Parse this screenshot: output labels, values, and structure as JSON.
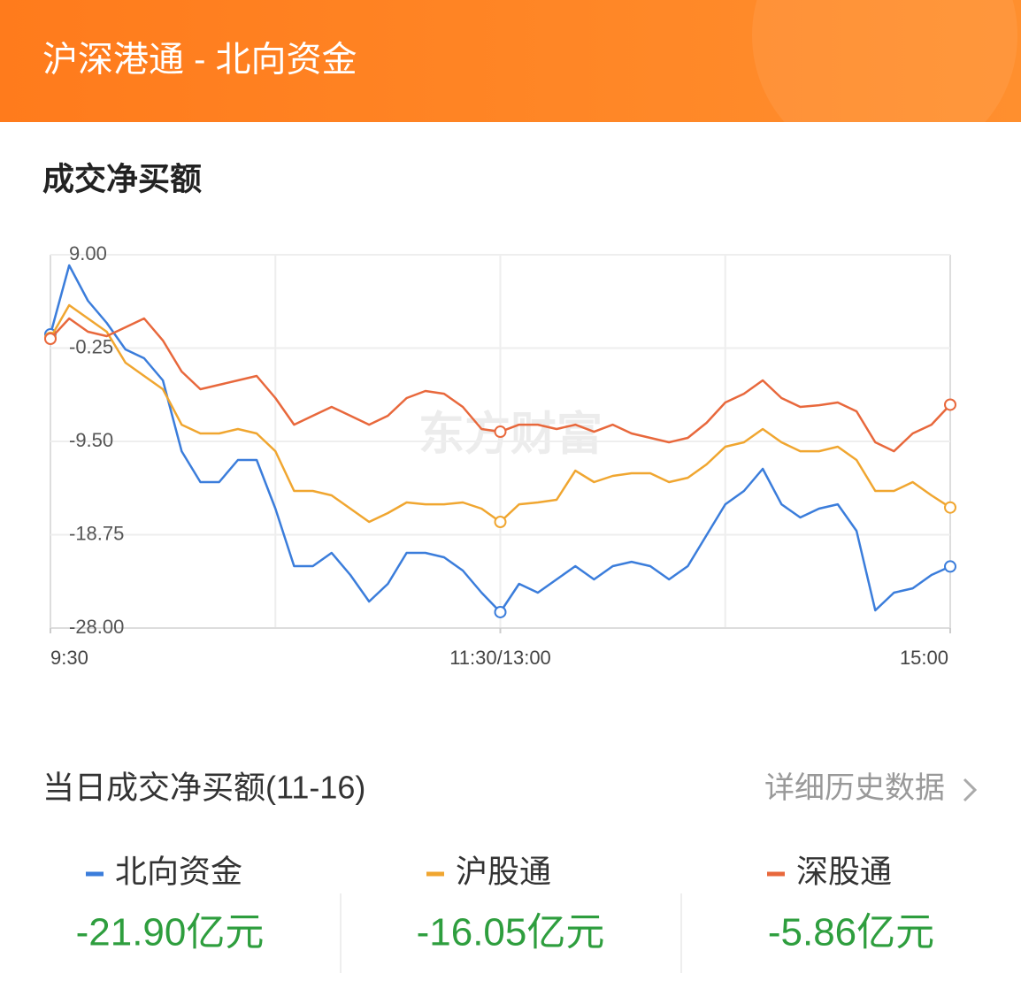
{
  "header": {
    "title": "沪深港通 - 北向资金"
  },
  "section": {
    "title": "成交净买额"
  },
  "watermark": "东方财富",
  "chart_data": {
    "type": "line",
    "categories": [
      "9:30",
      null,
      null,
      null,
      null,
      null,
      null,
      null,
      null,
      null,
      null,
      null,
      null,
      null,
      null,
      null,
      null,
      null,
      null,
      null,
      null,
      null,
      null,
      null,
      "11:30/13:00",
      null,
      null,
      null,
      null,
      null,
      null,
      null,
      null,
      null,
      null,
      null,
      null,
      null,
      null,
      null,
      null,
      null,
      null,
      null,
      null,
      null,
      null,
      null,
      "15:00"
    ],
    "ylim": [
      -28,
      9
    ],
    "yticks": [
      {
        "value": 9,
        "label": "9.00"
      },
      -0.25,
      {
        "value": -9.5,
        "label": "-9.50"
      },
      -18.75,
      {
        "value": -28,
        "label": "-28.00"
      }
    ],
    "grid": true,
    "series": [
      {
        "name": "北向资金",
        "color": "#3b7ddb",
        "values": [
          1.11,
          7.95,
          4.44,
          2.25,
          -0.38,
          -1.26,
          -3.45,
          -10.47,
          -13.53,
          -13.53,
          -11.34,
          -11.34,
          -16.16,
          -21.86,
          -21.86,
          -20.55,
          -22.74,
          -25.37,
          -23.62,
          -20.55,
          -20.55,
          -20.99,
          -22.3,
          -24.49,
          -26.42,
          -23.62,
          -24.49,
          -23.18,
          -21.86,
          -23.18,
          -21.86,
          -21.43,
          -21.86,
          -23.18,
          -21.86,
          -18.79,
          -15.73,
          -14.41,
          -12.22,
          -15.73,
          -17.04,
          -16.16,
          -15.73,
          -18.36,
          -26.25,
          -24.49,
          -24.06,
          -22.74,
          -21.9
        ]
      },
      {
        "name": "沪股通",
        "color": "#f0a630",
        "values": [
          0.76,
          4.0,
          2.69,
          1.37,
          -1.7,
          -3.01,
          -4.33,
          -7.84,
          -8.71,
          -8.71,
          -8.27,
          -8.71,
          -10.47,
          -14.41,
          -14.41,
          -14.85,
          -16.16,
          -17.48,
          -16.6,
          -15.55,
          -15.73,
          -15.73,
          -15.55,
          -16.16,
          -17.48,
          -15.73,
          -15.55,
          -15.29,
          -12.4,
          -13.53,
          -12.92,
          -12.66,
          -12.66,
          -13.53,
          -13.1,
          -11.78,
          -10.03,
          -9.59,
          -8.27,
          -9.59,
          -10.47,
          -10.47,
          -10.03,
          -11.34,
          -14.41,
          -14.41,
          -13.53,
          -14.85,
          -16.05
        ]
      },
      {
        "name": "深股通",
        "color": "#e8683c",
        "values": [
          0.67,
          2.69,
          1.37,
          0.93,
          1.81,
          2.69,
          0.5,
          -2.57,
          -4.33,
          -3.89,
          -3.45,
          -3.01,
          -5.2,
          -7.84,
          -6.96,
          -6.08,
          -6.96,
          -7.84,
          -6.96,
          -5.2,
          -4.5,
          -4.77,
          -6.08,
          -8.27,
          -8.54,
          -7.84,
          -7.84,
          -8.27,
          -7.84,
          -8.54,
          -7.84,
          -8.71,
          -9.15,
          -9.59,
          -9.15,
          -7.66,
          -5.64,
          -4.77,
          -3.45,
          -5.2,
          -6.08,
          -5.91,
          -5.64,
          -6.52,
          -9.59,
          -10.47,
          -8.71,
          -7.84,
          -5.86
        ]
      }
    ]
  },
  "summary": {
    "title": "当日成交净买额(11-16)",
    "link": "详细历史数据",
    "items": [
      {
        "value": "-21.90亿元"
      },
      {
        "value": "-16.05亿元"
      },
      {
        "value": "-5.86亿元"
      }
    ]
  }
}
